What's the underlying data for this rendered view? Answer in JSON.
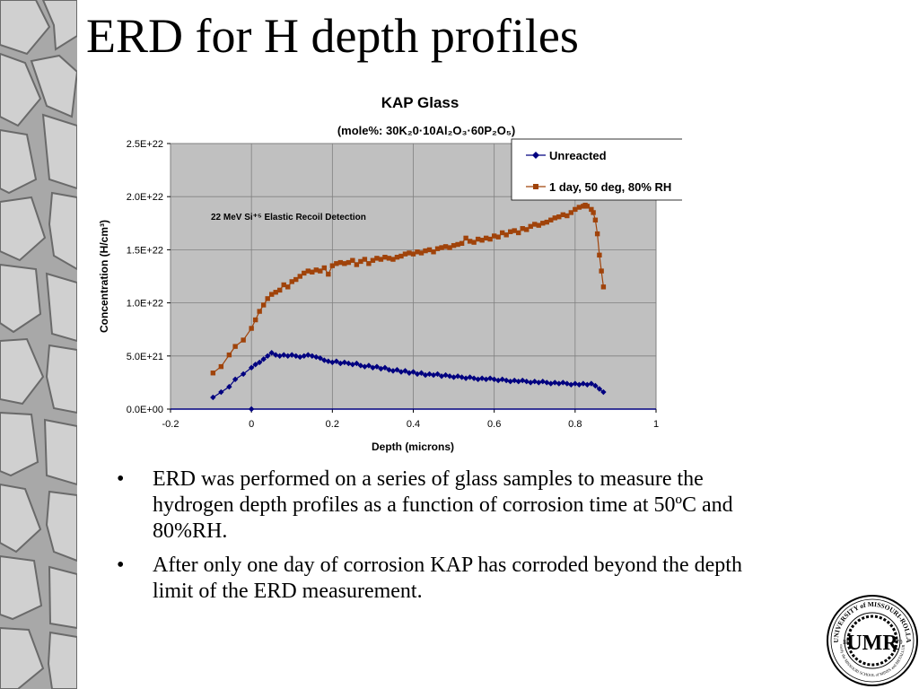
{
  "slide": {
    "title": "ERD for H depth profiles",
    "bullets": [
      "ERD was performed on a series of glass samples to measure the hydrogen depth profiles as a function of corrosion time at 50ºC and 80%RH.",
      "After only one day of corrosion KAP has corroded beyond the depth limit of the ERD measurement."
    ],
    "bullet_symbol": "•",
    "logo_text": {
      "ring": "UNIVERSITY of MISSOURI-ROLLA",
      "inner": "Formerly the MISSOURI SCHOOL of MINES and METALLURGY",
      "monogram": "UMR",
      "year_left": "18",
      "year_right": "70"
    }
  },
  "chart_data": {
    "type": "scatter",
    "title": "KAP Glass",
    "subtitle": "(mole%: 30K₂0·10Al₂O₃·60P₂O₅)",
    "annotation": "22 MeV Si⁺⁵ Elastic Recoil Detection",
    "xlabel": "Depth (microns)",
    "ylabel": "Concentration (H/cm³)",
    "xlim": [
      -0.2,
      1
    ],
    "ylim": [
      0,
      2.5e+22
    ],
    "xticks": [
      "-0.2",
      "0",
      "0.2",
      "0.4",
      "0.6",
      "0.8",
      "1"
    ],
    "yticks": [
      "0.0E+00",
      "5.0E+21",
      "1.0E+22",
      "1.5E+22",
      "2.0E+22",
      "2.5E+22"
    ],
    "grid": true,
    "plot_background": "#c0c0c0",
    "legend_position": "top-right",
    "series": [
      {
        "name": "Unreacted",
        "color": "#000080",
        "marker": "diamond",
        "points": [
          [
            -0.095,
            1.1e+21
          ],
          [
            -0.075,
            1.6e+21
          ],
          [
            -0.055,
            2.1e+21
          ],
          [
            -0.04,
            2.8e+21
          ],
          [
            -0.02,
            3.3e+21
          ],
          [
            0.0,
            3.9e+21
          ],
          [
            0.01,
            4.2e+21
          ],
          [
            0.02,
            4.4e+21
          ],
          [
            0.03,
            4.7e+21
          ],
          [
            0.04,
            5e+21
          ],
          [
            0.05,
            5.3e+21
          ],
          [
            0.06,
            5.1e+21
          ],
          [
            0.07,
            5e+21
          ],
          [
            0.08,
            5.1e+21
          ],
          [
            0.09,
            5e+21
          ],
          [
            0.1,
            5.1e+21
          ],
          [
            0.11,
            5e+21
          ],
          [
            0.12,
            4.9e+21
          ],
          [
            0.13,
            5e+21
          ],
          [
            0.14,
            5.1e+21
          ],
          [
            0.15,
            5e+21
          ],
          [
            0.16,
            4.9e+21
          ],
          [
            0.17,
            4.8e+21
          ],
          [
            0.18,
            4.6e+21
          ],
          [
            0.19,
            4.5e+21
          ],
          [
            0.2,
            4.4e+21
          ],
          [
            0.21,
            4.5e+21
          ],
          [
            0.22,
            4.3e+21
          ],
          [
            0.23,
            4.4e+21
          ],
          [
            0.24,
            4.3e+21
          ],
          [
            0.25,
            4.2e+21
          ],
          [
            0.26,
            4.3e+21
          ],
          [
            0.27,
            4.1e+21
          ],
          [
            0.28,
            4e+21
          ],
          [
            0.29,
            4.1e+21
          ],
          [
            0.3,
            3.9e+21
          ],
          [
            0.31,
            4e+21
          ],
          [
            0.32,
            3.8e+21
          ],
          [
            0.33,
            3.9e+21
          ],
          [
            0.34,
            3.7e+21
          ],
          [
            0.35,
            3.6e+21
          ],
          [
            0.36,
            3.7e+21
          ],
          [
            0.37,
            3.5e+21
          ],
          [
            0.38,
            3.6e+21
          ],
          [
            0.39,
            3.4e+21
          ],
          [
            0.4,
            3.5e+21
          ],
          [
            0.41,
            3.3e+21
          ],
          [
            0.42,
            3.4e+21
          ],
          [
            0.43,
            3.2e+21
          ],
          [
            0.44,
            3.3e+21
          ],
          [
            0.45,
            3.2e+21
          ],
          [
            0.46,
            3.3e+21
          ],
          [
            0.47,
            3.1e+21
          ],
          [
            0.48,
            3.2e+21
          ],
          [
            0.49,
            3.1e+21
          ],
          [
            0.5,
            3e+21
          ],
          [
            0.51,
            3.1e+21
          ],
          [
            0.52,
            3e+21
          ],
          [
            0.53,
            2.9e+21
          ],
          [
            0.54,
            3e+21
          ],
          [
            0.55,
            2.9e+21
          ],
          [
            0.56,
            2.8e+21
          ],
          [
            0.57,
            2.9e+21
          ],
          [
            0.58,
            2.8e+21
          ],
          [
            0.59,
            2.9e+21
          ],
          [
            0.6,
            2.8e+21
          ],
          [
            0.61,
            2.7e+21
          ],
          [
            0.62,
            2.8e+21
          ],
          [
            0.63,
            2.7e+21
          ],
          [
            0.64,
            2.6e+21
          ],
          [
            0.65,
            2.7e+21
          ],
          [
            0.66,
            2.6e+21
          ],
          [
            0.67,
            2.7e+21
          ],
          [
            0.68,
            2.6e+21
          ],
          [
            0.69,
            2.5e+21
          ],
          [
            0.7,
            2.6e+21
          ],
          [
            0.71,
            2.5e+21
          ],
          [
            0.72,
            2.6e+21
          ],
          [
            0.73,
            2.5e+21
          ],
          [
            0.74,
            2.4e+21
          ],
          [
            0.75,
            2.5e+21
          ],
          [
            0.76,
            2.4e+21
          ],
          [
            0.77,
            2.5e+21
          ],
          [
            0.78,
            2.4e+21
          ],
          [
            0.79,
            2.3e+21
          ],
          [
            0.8,
            2.4e+21
          ],
          [
            0.81,
            2.3e+21
          ],
          [
            0.82,
            2.4e+21
          ],
          [
            0.83,
            2.3e+21
          ],
          [
            0.84,
            2.4e+21
          ],
          [
            0.85,
            2.2e+21
          ],
          [
            0.86,
            1.9e+21
          ],
          [
            0.87,
            1.6e+21
          ]
        ],
        "extra_points": [
          [
            0.0,
            0.0
          ]
        ]
      },
      {
        "name": "1 day, 50 deg, 80% RH",
        "color": "#a0430a",
        "marker": "square",
        "points": [
          [
            -0.095,
            3.4e+21
          ],
          [
            -0.075,
            4e+21
          ],
          [
            -0.055,
            5.1e+21
          ],
          [
            -0.04,
            5.9e+21
          ],
          [
            -0.02,
            6.5e+21
          ],
          [
            0.0,
            7.6e+21
          ],
          [
            0.01,
            8.4e+21
          ],
          [
            0.02,
            9.2e+21
          ],
          [
            0.03,
            9.8e+21
          ],
          [
            0.04,
            1.04e+22
          ],
          [
            0.05,
            1.08e+22
          ],
          [
            0.06,
            1.1e+22
          ],
          [
            0.07,
            1.12e+22
          ],
          [
            0.08,
            1.17e+22
          ],
          [
            0.09,
            1.15e+22
          ],
          [
            0.1,
            1.2e+22
          ],
          [
            0.11,
            1.22e+22
          ],
          [
            0.12,
            1.25e+22
          ],
          [
            0.13,
            1.28e+22
          ],
          [
            0.14,
            1.3e+22
          ],
          [
            0.15,
            1.29e+22
          ],
          [
            0.16,
            1.31e+22
          ],
          [
            0.17,
            1.3e+22
          ],
          [
            0.18,
            1.33e+22
          ],
          [
            0.19,
            1.27e+22
          ],
          [
            0.2,
            1.35e+22
          ],
          [
            0.21,
            1.37e+22
          ],
          [
            0.22,
            1.38e+22
          ],
          [
            0.23,
            1.37e+22
          ],
          [
            0.24,
            1.38e+22
          ],
          [
            0.25,
            1.4e+22
          ],
          [
            0.26,
            1.36e+22
          ],
          [
            0.27,
            1.39e+22
          ],
          [
            0.28,
            1.41e+22
          ],
          [
            0.29,
            1.37e+22
          ],
          [
            0.3,
            1.4e+22
          ],
          [
            0.31,
            1.42e+22
          ],
          [
            0.32,
            1.41e+22
          ],
          [
            0.33,
            1.43e+22
          ],
          [
            0.34,
            1.42e+22
          ],
          [
            0.35,
            1.41e+22
          ],
          [
            0.36,
            1.43e+22
          ],
          [
            0.37,
            1.44e+22
          ],
          [
            0.38,
            1.46e+22
          ],
          [
            0.39,
            1.47e+22
          ],
          [
            0.4,
            1.46e+22
          ],
          [
            0.41,
            1.48e+22
          ],
          [
            0.42,
            1.47e+22
          ],
          [
            0.43,
            1.49e+22
          ],
          [
            0.44,
            1.5e+22
          ],
          [
            0.45,
            1.48e+22
          ],
          [
            0.46,
            1.51e+22
          ],
          [
            0.47,
            1.52e+22
          ],
          [
            0.48,
            1.53e+22
          ],
          [
            0.49,
            1.52e+22
          ],
          [
            0.5,
            1.54e+22
          ],
          [
            0.51,
            1.55e+22
          ],
          [
            0.52,
            1.56e+22
          ],
          [
            0.53,
            1.61e+22
          ],
          [
            0.54,
            1.58e+22
          ],
          [
            0.55,
            1.57e+22
          ],
          [
            0.56,
            1.6e+22
          ],
          [
            0.57,
            1.59e+22
          ],
          [
            0.58,
            1.61e+22
          ],
          [
            0.59,
            1.6e+22
          ],
          [
            0.6,
            1.63e+22
          ],
          [
            0.61,
            1.62e+22
          ],
          [
            0.62,
            1.66e+22
          ],
          [
            0.63,
            1.64e+22
          ],
          [
            0.64,
            1.67e+22
          ],
          [
            0.65,
            1.68e+22
          ],
          [
            0.66,
            1.66e+22
          ],
          [
            0.67,
            1.7e+22
          ],
          [
            0.68,
            1.69e+22
          ],
          [
            0.69,
            1.72e+22
          ],
          [
            0.7,
            1.74e+22
          ],
          [
            0.71,
            1.73e+22
          ],
          [
            0.72,
            1.75e+22
          ],
          [
            0.73,
            1.76e+22
          ],
          [
            0.74,
            1.78e+22
          ],
          [
            0.75,
            1.8e+22
          ],
          [
            0.76,
            1.81e+22
          ],
          [
            0.77,
            1.83e+22
          ],
          [
            0.78,
            1.82e+22
          ],
          [
            0.79,
            1.85e+22
          ],
          [
            0.8,
            1.88e+22
          ],
          [
            0.81,
            1.9e+22
          ],
          [
            0.82,
            1.91e+22
          ],
          [
            0.825,
            1.92e+22
          ],
          [
            0.83,
            1.91e+22
          ],
          [
            0.84,
            1.88e+22
          ],
          [
            0.845,
            1.85e+22
          ],
          [
            0.85,
            1.78e+22
          ],
          [
            0.855,
            1.65e+22
          ],
          [
            0.86,
            1.45e+22
          ],
          [
            0.865,
            1.3e+22
          ],
          [
            0.87,
            1.15e+22
          ]
        ]
      }
    ]
  }
}
